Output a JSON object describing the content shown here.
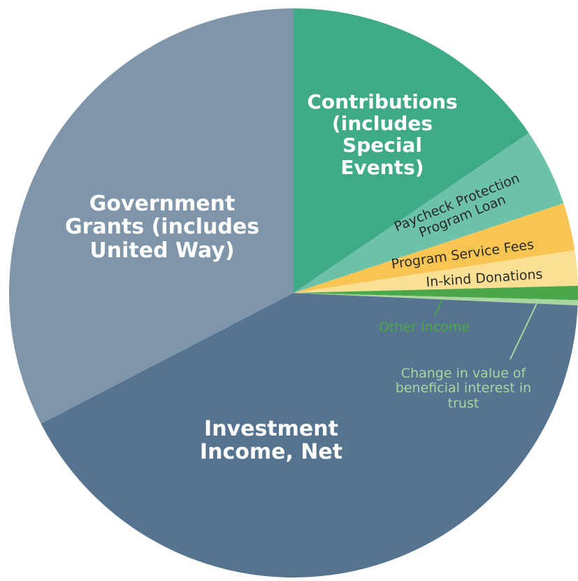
{
  "chart_data": {
    "type": "pie",
    "categories": [
      "Contributions (includes Special Events)",
      "Paycheck Protection Program Loan",
      "Program Service Fees",
      "In-kind Donations",
      "Other Income",
      "Change in value of beneficial interest in trust",
      "Investment Income, Net",
      "Government Grants (includes United Way)"
    ],
    "values": [
      15.5,
      4.4,
      2.7,
      2.0,
      0.8,
      0.3,
      41.7,
      32.6
    ],
    "colors": [
      "#3eaa87",
      "#6cc2a8",
      "#f8c552",
      "#fadf94",
      "#4aa84a",
      "#a8d5a0",
      "#56748f",
      "#7f96aa"
    ]
  }
}
